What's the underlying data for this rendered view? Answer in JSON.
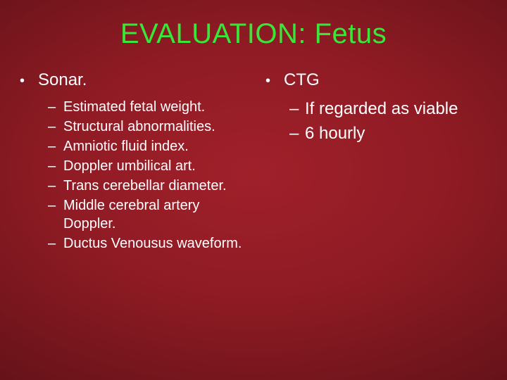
{
  "title_color": "#39e639",
  "text_color": "#ffffff",
  "title": "EVALUATION: Fetus",
  "left": {
    "heading": "Sonar.",
    "items": [
      "Estimated fetal weight.",
      "Structural abnormalities.",
      "Amniotic fluid index.",
      "Doppler umbilical art.",
      "Trans cerebellar diameter.",
      "Middle cerebral artery Doppler.",
      "Ductus Venousus waveform."
    ]
  },
  "right": {
    "heading": "CTG",
    "items": [
      "If regarded as viable",
      "6 hourly"
    ]
  }
}
